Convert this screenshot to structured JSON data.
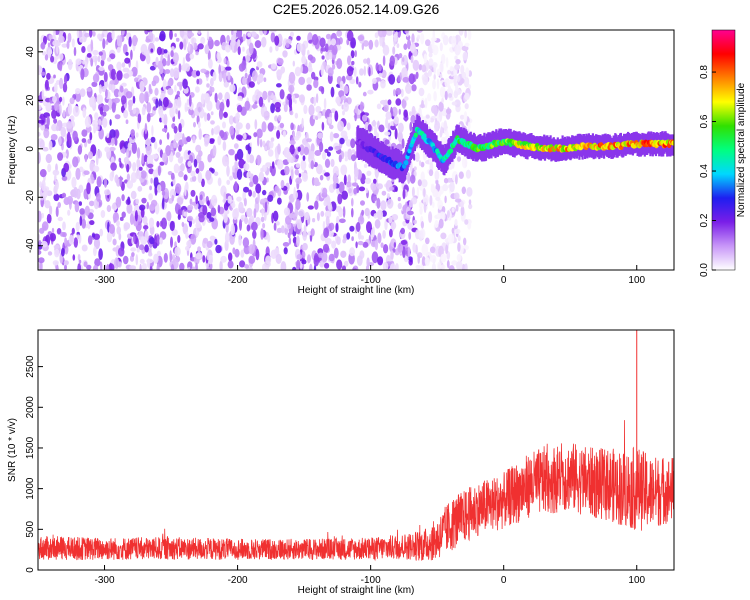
{
  "title": "C2E5.2026.052.14.09.G26",
  "chart_data": [
    {
      "type": "heatmap",
      "name": "spectrogram",
      "xlabel": "Height of straight line (km)",
      "ylabel": "Frequency (Hz)",
      "xlim": [
        -350,
        128
      ],
      "ylim": [
        -50,
        49
      ],
      "xticks": [
        -300,
        -200,
        -100,
        0,
        100
      ],
      "yticks": [
        -40,
        -20,
        0,
        20,
        40
      ],
      "colorbar": {
        "label": "Normalized spectral amplitude",
        "range": [
          0,
          0.97
        ],
        "ticks": [
          "0.0",
          "0.2",
          "0.4",
          "0.6",
          "0.8"
        ],
        "colormap": [
          "#ffffff",
          "#c896f8",
          "#7a1ee8",
          "#1e1ef0",
          "#00d8ff",
          "#00ff80",
          "#30e000",
          "#ffff00",
          "#ff8000",
          "#ff0000",
          "#ff0090"
        ]
      },
      "noise_region": {
        "x_from": -350,
        "x_to": -65,
        "amplitude_level": "low (violet)"
      },
      "signal_track": {
        "x": [
          -110,
          -90,
          -75,
          -65,
          -55,
          -45,
          -35,
          -20,
          0,
          20,
          40,
          60,
          80,
          100,
          128
        ],
        "frequency": [
          3,
          -4,
          -8,
          8,
          2,
          -5,
          4,
          0,
          3,
          1,
          0,
          1,
          1,
          2,
          2
        ],
        "amplitude": [
          0.2,
          0.35,
          0.4,
          0.55,
          0.45,
          0.5,
          0.6,
          0.65,
          0.7,
          0.8,
          0.85,
          0.85,
          0.9,
          0.9,
          0.9
        ]
      }
    },
    {
      "type": "line",
      "name": "snr",
      "xlabel": "Height of straight line (km)",
      "ylabel": "SNR (10 * v/v)",
      "xlim": [
        -350,
        128
      ],
      "ylim": [
        0,
        2950
      ],
      "xticks": [
        -300,
        -200,
        -100,
        0,
        100
      ],
      "yticks": [
        0,
        500,
        1000,
        1500,
        2000,
        2500
      ],
      "color": "#f03030",
      "series_envelope": {
        "x": [
          -350,
          -300,
          -250,
          -200,
          -150,
          -100,
          -75,
          -60,
          -50,
          -40,
          -30,
          -20,
          -10,
          0,
          10,
          20,
          30,
          40,
          50,
          60,
          70,
          80,
          90,
          100,
          110,
          128
        ],
        "mean": [
          270,
          260,
          265,
          255,
          255,
          260,
          290,
          300,
          380,
          550,
          650,
          750,
          800,
          850,
          950,
          1050,
          1100,
          1120,
          1150,
          1100,
          1060,
          1050,
          1000,
          1000,
          950,
          1000
        ],
        "spread": [
          150,
          140,
          140,
          130,
          130,
          140,
          160,
          200,
          260,
          330,
          330,
          330,
          340,
          350,
          380,
          400,
          420,
          420,
          430,
          430,
          440,
          450,
          480,
          520,
          460,
          400
        ]
      },
      "peak": {
        "x": 100,
        "y": 2950
      }
    }
  ]
}
